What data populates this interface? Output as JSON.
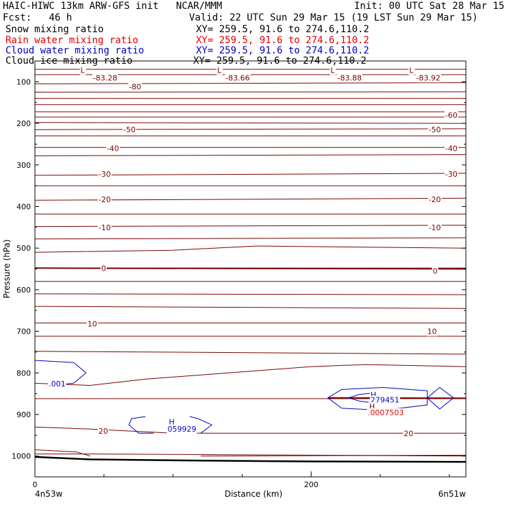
{
  "header": {
    "title": "HAIC-HIWC 13km ARW-GFS init   NCAR/MMM",
    "init": "Init: 00 UTC Sat 28 Mar 15",
    "fcst": "Fcst:   46 h",
    "valid": "Valid: 22 UTC Sun 29 Mar 15 (19 LST Sun 29 Mar 15)",
    "fields": [
      {
        "name": "Snow mixing ratio",
        "xy": "XY= 259.5, 91.6 to 274.6,110.2",
        "color": "#000000"
      },
      {
        "name": "Rain water mixing ratio",
        "xy": "XY= 259.5, 91.6 to 274.6,110.2",
        "color": "#e00000"
      },
      {
        "name": "Cloud water mixing ratio",
        "xy": "XY= 259.5, 91.6 to 274.6,110.2",
        "color": "#0000c0"
      },
      {
        "name": "Cloud ice mixing ratio",
        "xy": "XY= 259.5, 91.6 to 274.6,110.2",
        "color": "#000000"
      }
    ]
  },
  "chart_data": {
    "type": "contour-cross-section",
    "xlabel": "Distance (km)",
    "ylabel": "Pressure (hPa)",
    "xlim": [
      0,
      312
    ],
    "ylim": [
      1050,
      50
    ],
    "x_ticks": [
      0,
      200
    ],
    "y_ticks": [
      100,
      200,
      300,
      400,
      500,
      600,
      700,
      800,
      900,
      1000
    ],
    "endpoint_labels": [
      "4n53w",
      "6n51w"
    ],
    "colors": {
      "temperature": "#7a0000",
      "cloud_water": "#0000c0",
      "ground": "#000000"
    },
    "temperature_contours": [
      {
        "x": [
          0,
          312
        ],
        "p": [
          70,
          70
        ]
      },
      {
        "x": [
          0,
          312
        ],
        "p": [
          83,
          83
        ]
      },
      {
        "x": [
          0,
          312
        ],
        "p": [
          105,
          102
        ]
      },
      {
        "x": [
          0,
          312
        ],
        "p": [
          125,
          124
        ]
      },
      {
        "x": [
          0,
          312
        ],
        "p": [
          140,
          140
        ]
      },
      {
        "x": [
          0,
          312
        ],
        "p": [
          155,
          155
        ]
      },
      {
        "x": [
          0,
          312
        ],
        "p": [
          172,
          172
        ]
      },
      {
        "x": [
          0,
          312
        ],
        "p": [
          185,
          185
        ]
      },
      {
        "x": [
          0,
          312
        ],
        "p": [
          198,
          200
        ]
      },
      {
        "x": [
          0,
          312
        ],
        "p": [
          215,
          213
        ]
      },
      {
        "x": [
          0,
          312
        ],
        "p": [
          230,
          230
        ]
      },
      {
        "x": [
          0,
          312
        ],
        "p": [
          258,
          258
        ]
      },
      {
        "x": [
          0,
          312
        ],
        "p": [
          278,
          275
        ]
      },
      {
        "x": [
          0,
          312
        ],
        "p": [
          325,
          320
        ]
      },
      {
        "x": [
          0,
          312
        ],
        "p": [
          350,
          350
        ]
      },
      {
        "x": [
          0,
          312
        ],
        "p": [
          385,
          380
        ]
      },
      {
        "x": [
          0,
          312
        ],
        "p": [
          418,
          418
        ]
      },
      {
        "x": [
          0,
          312
        ],
        "p": [
          448,
          445
        ]
      },
      {
        "x": [
          0,
          312
        ],
        "p": [
          478,
          475
        ]
      },
      {
        "x": [
          0,
          100,
          160,
          312
        ],
        "p": [
          510,
          505,
          495,
          500
        ]
      },
      {
        "x": [
          0,
          312
        ],
        "p": [
          548,
          548
        ]
      },
      {
        "x": [
          0,
          312
        ],
        "p": [
          580,
          580
        ]
      },
      {
        "x": [
          0,
          312
        ],
        "p": [
          610,
          612
        ]
      },
      {
        "x": [
          0,
          312
        ],
        "p": [
          640,
          645
        ]
      },
      {
        "x": [
          0,
          312
        ],
        "p": [
          680,
          680
        ]
      },
      {
        "x": [
          0,
          312
        ],
        "p": [
          712,
          712
        ]
      },
      {
        "x": [
          0,
          312
        ],
        "p": [
          748,
          755
        ]
      },
      {
        "x": [
          0,
          40,
          80,
          140,
          200,
          240,
          312
        ],
        "p": [
          825,
          830,
          815,
          800,
          785,
          780,
          785
        ]
      },
      {
        "x": [
          0,
          312
        ],
        "p": [
          862,
          862
        ]
      },
      {
        "x": [
          0,
          40,
          100,
          160,
          312
        ],
        "p": [
          930,
          935,
          945,
          945,
          945
        ]
      },
      {
        "x": [
          0,
          40,
          312
        ],
        "p": [
          995,
          995,
          1000
        ]
      },
      {
        "x": [
          0,
          30,
          40
        ],
        "p": [
          985,
          990,
          1000
        ]
      },
      {
        "x": [
          120,
          312
        ],
        "p": [
          1000,
          998
        ]
      }
    ],
    "bold_contours": [
      {
        "x": [
          0,
          312
        ],
        "p": [
          548,
          550
        ]
      },
      {
        "x": [
          212,
          312
        ],
        "p": [
          860,
          861
        ]
      }
    ],
    "ground": {
      "x": [
        0,
        40,
        120,
        200,
        312
      ],
      "p": [
        1002,
        1008,
        1011,
        1013,
        1014
      ]
    },
    "labels": [
      {
        "text": "L",
        "x": 33,
        "p": 72,
        "color": "#7a0000"
      },
      {
        "text": "-83.28",
        "x": 42,
        "p": 90,
        "color": "#7a0000"
      },
      {
        "text": "L",
        "x": 132,
        "p": 72,
        "color": "#7a0000"
      },
      {
        "text": "-83.66",
        "x": 138,
        "p": 90,
        "color": "#7a0000"
      },
      {
        "text": "L",
        "x": 214,
        "p": 72,
        "color": "#7a0000"
      },
      {
        "text": "-83.88",
        "x": 219,
        "p": 90,
        "color": "#7a0000"
      },
      {
        "text": "L",
        "x": 271,
        "p": 72,
        "color": "#7a0000"
      },
      {
        "text": "-83.92",
        "x": 276,
        "p": 90,
        "color": "#7a0000"
      },
      {
        "text": "-80",
        "x": 68,
        "p": 112,
        "color": "#7a0000"
      },
      {
        "text": "-60",
        "x": 297,
        "p": 180,
        "color": "#7a0000"
      },
      {
        "text": "-50",
        "x": 64,
        "p": 215,
        "color": "#7a0000"
      },
      {
        "text": "-50",
        "x": 285,
        "p": 215,
        "color": "#7a0000"
      },
      {
        "text": "-40",
        "x": 52,
        "p": 260,
        "color": "#7a0000"
      },
      {
        "text": "-40",
        "x": 297,
        "p": 260,
        "color": "#7a0000"
      },
      {
        "text": "-30",
        "x": 46,
        "p": 322,
        "color": "#7a0000"
      },
      {
        "text": "-30",
        "x": 297,
        "p": 322,
        "color": "#7a0000"
      },
      {
        "text": "-20",
        "x": 46,
        "p": 383,
        "color": "#7a0000"
      },
      {
        "text": "-20",
        "x": 285,
        "p": 383,
        "color": "#7a0000"
      },
      {
        "text": "-10",
        "x": 46,
        "p": 450,
        "color": "#7a0000"
      },
      {
        "text": "-10",
        "x": 285,
        "p": 450,
        "color": "#7a0000"
      },
      {
        "text": "0",
        "x": 48,
        "p": 548,
        "color": "#7a0000"
      },
      {
        "text": "0",
        "x": 288,
        "p": 555,
        "color": "#7a0000"
      },
      {
        "text": "10",
        "x": 38,
        "p": 682,
        "color": "#7a0000"
      },
      {
        "text": "10",
        "x": 284,
        "p": 700,
        "color": "#7a0000"
      },
      {
        "text": "20",
        "x": 46,
        "p": 940,
        "color": "#7a0000"
      },
      {
        "text": "20",
        "x": 267,
        "p": 945,
        "color": "#7a0000"
      },
      {
        "text": "H",
        "x": 97,
        "p": 917,
        "color": "#0000c0"
      },
      {
        "text": "059929",
        "x": 96,
        "p": 935,
        "color": "#0000c0"
      },
      {
        "text": ".001",
        "x": 10,
        "p": 826,
        "color": "#0000c0"
      },
      {
        "text": "H",
        "x": 243,
        "p": 852,
        "color": "#0000c0"
      },
      {
        "text": "279451",
        "x": 243,
        "p": 865,
        "color": "#0000c0"
      },
      {
        "text": "H",
        "x": 242,
        "p": 880,
        "color": "#7a0000"
      },
      {
        "text": ".0007503",
        "x": 241,
        "p": 895,
        "color": "#e00000"
      }
    ],
    "cloud_water_contours": [
      {
        "x": [
          0,
          28,
          37,
          28,
          10
        ],
        "p": [
          770,
          775,
          800,
          825,
          830
        ]
      },
      {
        "x": [
          80,
          70,
          68,
          75,
          86
        ],
        "p": [
          905,
          910,
          925,
          945,
          945
        ]
      },
      {
        "x": [
          112,
          118,
          128,
          120
        ],
        "p": [
          905,
          910,
          925,
          945
        ]
      },
      {
        "x": [
          212,
          222,
          252,
          284,
          284,
          252,
          222,
          212
        ],
        "p": [
          860,
          840,
          835,
          843,
          877,
          890,
          885,
          860
        ]
      },
      {
        "x": [
          227,
          235,
          245
        ],
        "p": [
          860,
          852,
          848
        ]
      },
      {
        "x": [
          227,
          235,
          245
        ],
        "p": [
          860,
          868,
          872
        ]
      },
      {
        "x": [
          242,
          252,
          258
        ],
        "p": [
          860,
          856,
          860
        ]
      },
      {
        "x": [
          284,
          293,
          303,
          293,
          284
        ],
        "p": [
          860,
          835,
          860,
          887,
          860
        ]
      }
    ]
  }
}
